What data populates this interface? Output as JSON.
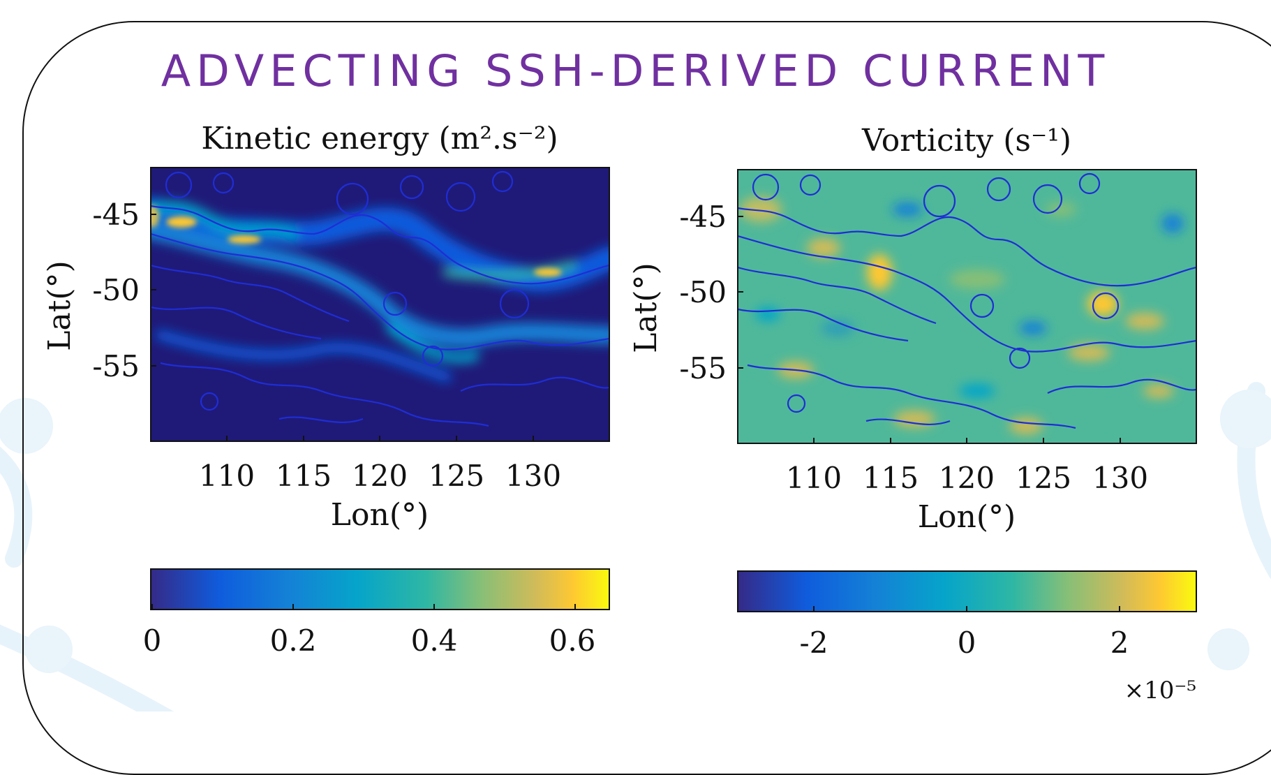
{
  "slide": {
    "title": "ADVECTING SSH-DERIVED CURRENT",
    "title_color": "#7030a0"
  },
  "chart_data": [
    {
      "type": "heatmap",
      "title": "Kinetic energy (m².s⁻²)",
      "xlabel": "Lon(°)",
      "ylabel": "Lat(°)",
      "xticks": [
        110,
        115,
        120,
        125,
        130
      ],
      "yticks": [
        -45,
        -50,
        -55
      ],
      "xlim": [
        105,
        135
      ],
      "ylim": [
        -60,
        -42
      ],
      "colormap": "parula",
      "contour_color": "#1f2dd6",
      "colorbar": {
        "ticks": [
          "0",
          "0.2",
          "0.4",
          "0.6"
        ],
        "range": [
          0,
          0.65
        ],
        "exponent": ""
      }
    },
    {
      "type": "heatmap",
      "title": "Vorticity (s⁻¹)",
      "xlabel": "Lon(°)",
      "ylabel": "Lat(°)",
      "xticks": [
        110,
        115,
        120,
        125,
        130
      ],
      "yticks": [
        -45,
        -50,
        -55
      ],
      "xlim": [
        105,
        135
      ],
      "ylim": [
        -60,
        -42
      ],
      "colormap": "parula",
      "contour_color": "#1f2dd6",
      "colorbar": {
        "ticks": [
          "-2",
          "0",
          "2"
        ],
        "range": [
          -3,
          3
        ],
        "exponent": "×10⁻⁵"
      }
    }
  ]
}
